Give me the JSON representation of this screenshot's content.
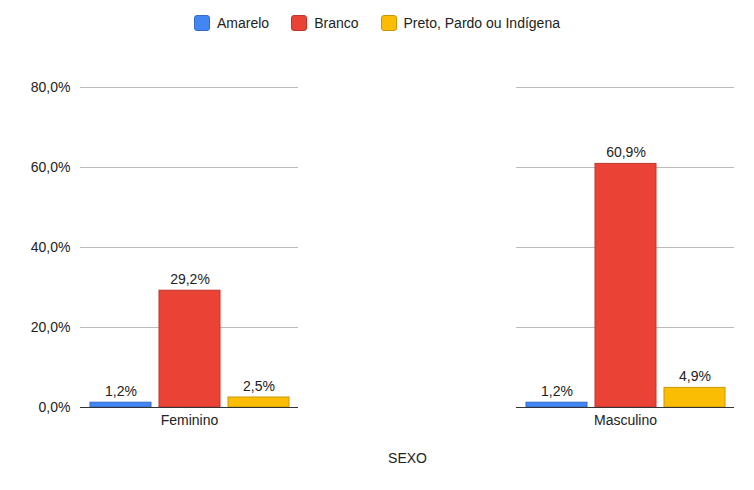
{
  "chart_data": {
    "type": "bar",
    "x_label": "SEXO",
    "categories": [
      "Feminino",
      "Masculino"
    ],
    "series": [
      {
        "name": "Amarelo",
        "color": "#4285f4",
        "values": [
          1.2,
          1.2
        ],
        "value_labels": [
          "1,2%",
          "1,2%"
        ]
      },
      {
        "name": "Branco",
        "color": "#ea4335",
        "values": [
          29.2,
          60.9
        ],
        "value_labels": [
          "29,2%",
          "60,9%"
        ]
      },
      {
        "name": "Preto, Pardo ou Indígena",
        "color": "#fbbc04",
        "values": [
          2.5,
          4.9
        ],
        "value_labels": [
          "2,5%",
          "4,9%"
        ]
      }
    ],
    "ylim": [
      0,
      80
    ],
    "yticks": [
      {
        "value": 0,
        "label": "0,0%"
      },
      {
        "value": 20,
        "label": "20,0%"
      },
      {
        "value": 40,
        "label": "40,0%"
      },
      {
        "value": 60,
        "label": "60,0%"
      },
      {
        "value": 80,
        "label": "80,0%"
      }
    ],
    "grid": true,
    "legend": "top",
    "data_labels": true
  }
}
